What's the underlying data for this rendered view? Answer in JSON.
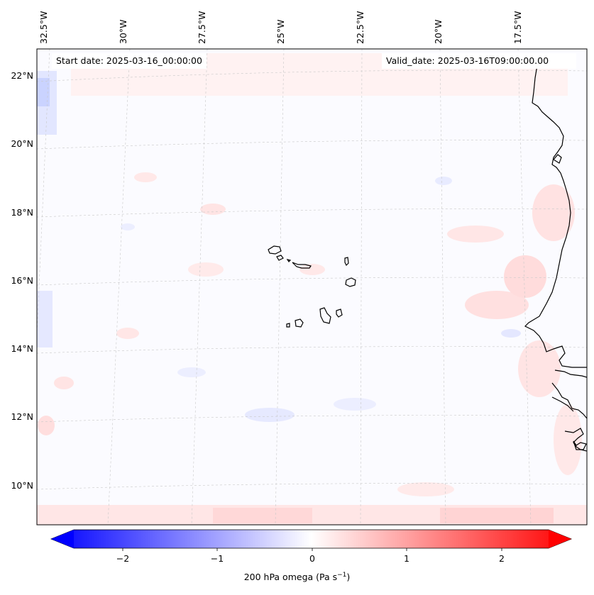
{
  "header": {
    "start_date": "Start date: 2025-03-16_00:00:00",
    "valid_date": "Valid_date: 2025-03-16T09:00:00.00"
  },
  "map": {
    "longitude_labels": [
      "32.5°W",
      "30°W",
      "27.5°W",
      "25°W",
      "22.5°W",
      "20°W",
      "17.5°W"
    ],
    "latitude_labels": [
      "22°N",
      "20°N",
      "18°N",
      "16°N",
      "14°N",
      "12°N",
      "10°N"
    ],
    "gridlines": true,
    "colormap": "bwr"
  },
  "colorbar": {
    "label_text": "200 hPa omega (Pa s",
    "label_sup": "−1",
    "label_close": ")",
    "ticks": [
      "−2",
      "−1",
      "0",
      "1",
      "2"
    ],
    "range": [
      -2.75,
      2.75
    ],
    "colors": {
      "negative": "#0000ff",
      "zero": "#ffffff",
      "positive": "#ff0000"
    }
  }
}
